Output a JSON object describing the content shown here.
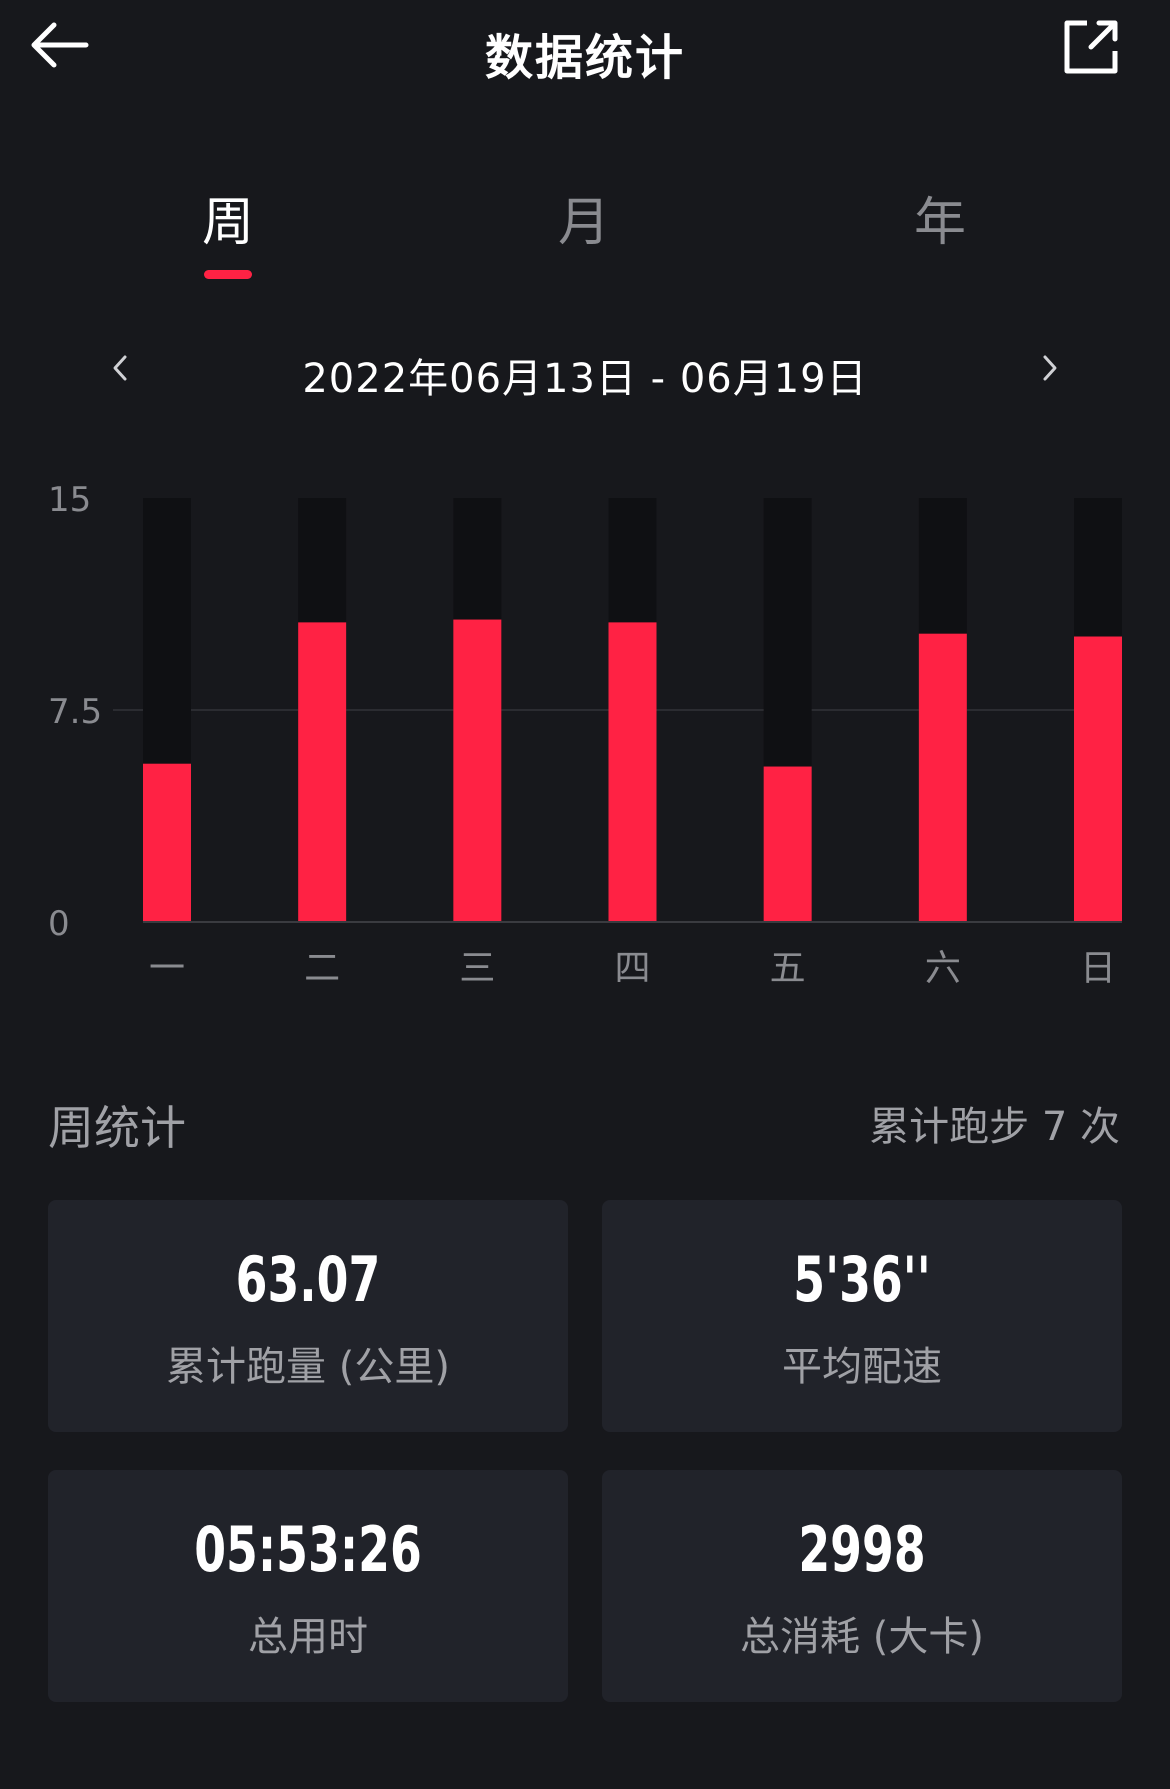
{
  "header": {
    "title": "数据统计",
    "back_icon": "arrow-left-icon",
    "share_icon": "share-external-icon"
  },
  "tabs": [
    {
      "label": "周",
      "active": true
    },
    {
      "label": "月",
      "active": false
    },
    {
      "label": "年",
      "active": false
    }
  ],
  "date_range": {
    "text": "2022年06月13日 - 06月19日",
    "prev_icon": "chevron-left-icon",
    "next_icon": "chevron-right-icon"
  },
  "colors": {
    "background": "#17181c",
    "accent": "#ff2244",
    "card_bg": "#21232a",
    "track": "#0f1013",
    "muted_text": "#a0a1a6"
  },
  "chart_data": {
    "type": "bar",
    "categories": [
      "一",
      "二",
      "三",
      "四",
      "五",
      "六",
      "日"
    ],
    "values": [
      5.6,
      10.6,
      10.7,
      10.6,
      5.5,
      10.2,
      10.1
    ],
    "y_ticks": [
      "15",
      "7.5",
      "0"
    ],
    "ylim": [
      0,
      15
    ],
    "grid": true
  },
  "summary": {
    "title": "周统计",
    "count_text": "累计跑步 7 次"
  },
  "stats": [
    {
      "value": "63.07",
      "label": "累计跑量 (公里)"
    },
    {
      "value": "5'36''",
      "label": "平均配速"
    },
    {
      "value": "05:53:26",
      "label": "总用时"
    },
    {
      "value": "2998",
      "label": "总消耗 (大卡)"
    }
  ]
}
